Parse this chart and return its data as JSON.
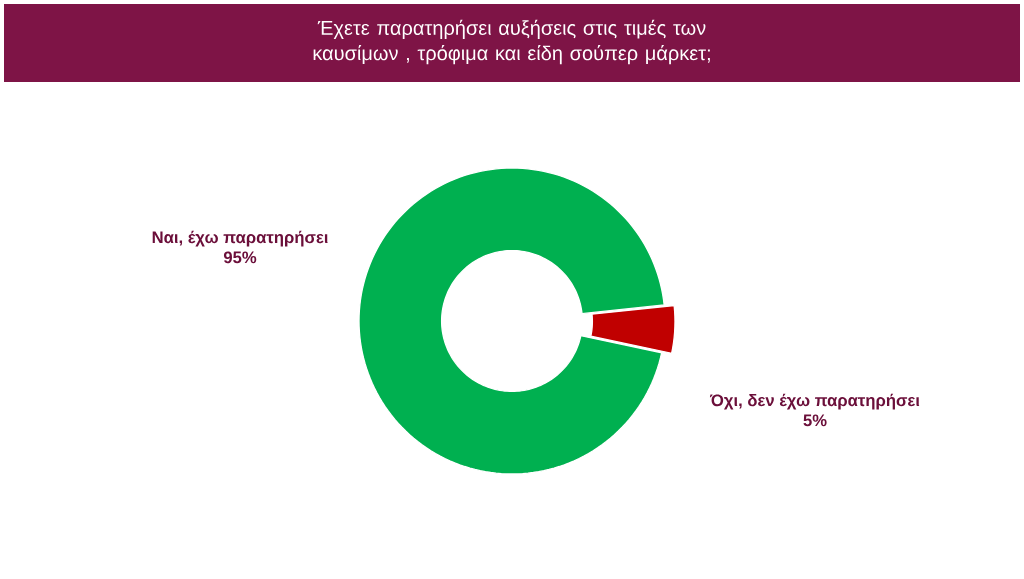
{
  "chart_data": {
    "type": "donut",
    "title": "Έχετε παρατηρήσει αυξήσεις στις τιμές των καυσίμων , τρόφιμα και είδη σούπερ μάρκετ;",
    "categories": [
      "Ναι, έχω παρατηρήσει",
      "Όχι, δεν έχω παρατηρήσει"
    ],
    "values": [
      95,
      5
    ],
    "colors": [
      "#00b050",
      "#c00000"
    ],
    "value_labels": [
      "95%",
      "5%"
    ]
  }
}
